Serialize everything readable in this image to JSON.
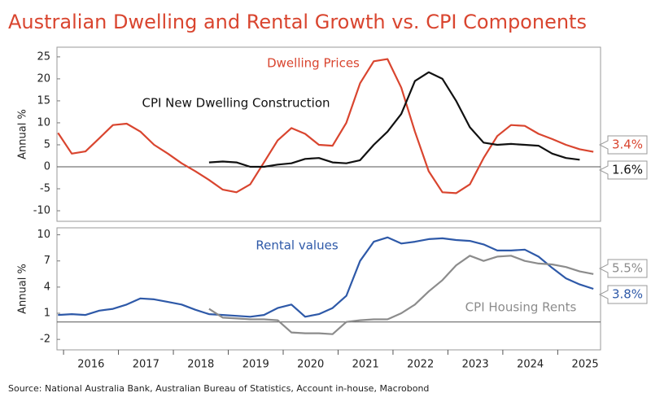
{
  "title": "Australian Dwelling and Rental Growth vs. CPI Components",
  "source": "Source: National Australia Bank, Australian Bureau of Statistics, Account in-house, Macrobond",
  "chart_data": [
    {
      "type": "line",
      "y_label": "Annual %",
      "x": [
        2015.9,
        2016.15,
        2016.4,
        2016.65,
        2016.9,
        2017.15,
        2017.4,
        2017.65,
        2017.9,
        2018.15,
        2018.4,
        2018.65,
        2018.9,
        2019.15,
        2019.4,
        2019.65,
        2019.9,
        2020.15,
        2020.4,
        2020.65,
        2020.9,
        2021.15,
        2021.4,
        2021.65,
        2021.9,
        2022.15,
        2022.4,
        2022.65,
        2022.9,
        2023.15,
        2023.4,
        2023.65,
        2023.9,
        2024.15,
        2024.4,
        2024.65,
        2024.9,
        2025.15,
        2025.4,
        2025.65
      ],
      "xlim": [
        2015.88,
        2025.78
      ],
      "ylim": [
        -12.4,
        27.2
      ],
      "yticks": [
        -10,
        -5,
        0,
        5,
        10,
        15,
        20,
        25
      ],
      "series": [
        {
          "name": "Dwelling Prices",
          "color": "#d9452f",
          "end_label": "3.4%",
          "values": [
            7.7,
            3.0,
            3.5,
            6.5,
            9.5,
            9.8,
            8,
            5,
            3,
            0.8,
            -1,
            -3,
            -5.2,
            -5.8,
            -4,
            1,
            6,
            8.8,
            7.5,
            5,
            4.8,
            10,
            19,
            24,
            24.5,
            18,
            8,
            -1,
            -5.8,
            -6,
            -4,
            2,
            7,
            9.5,
            9.3,
            7.5,
            6.3,
            5,
            4,
            3.4
          ]
        },
        {
          "name": "CPI New Dwelling Construction",
          "color": "#111111",
          "end_label": "1.6%",
          "values": [
            null,
            null,
            null,
            null,
            null,
            null,
            null,
            null,
            null,
            null,
            null,
            1.0,
            1.2,
            1.0,
            0,
            0,
            0.5,
            0.8,
            1.8,
            2,
            1,
            0.8,
            1.5,
            5,
            8,
            12,
            19.5,
            21.5,
            20,
            15,
            9,
            5.5,
            5,
            5.2,
            5,
            4.8,
            3,
            2,
            1.6,
            null
          ]
        }
      ]
    },
    {
      "type": "line",
      "y_label": "Annual %",
      "x": [
        2015.9,
        2016.15,
        2016.4,
        2016.65,
        2016.9,
        2017.15,
        2017.4,
        2017.65,
        2017.9,
        2018.15,
        2018.4,
        2018.65,
        2018.9,
        2019.15,
        2019.4,
        2019.65,
        2019.9,
        2020.15,
        2020.4,
        2020.65,
        2020.9,
        2021.15,
        2021.4,
        2021.65,
        2021.9,
        2022.15,
        2022.4,
        2022.65,
        2022.9,
        2023.15,
        2023.4,
        2023.65,
        2023.9,
        2024.15,
        2024.4,
        2024.65,
        2024.9,
        2025.15,
        2025.4,
        2025.65
      ],
      "xlim": [
        2015.88,
        2025.78
      ],
      "ylim": [
        -3.2,
        10.8
      ],
      "yticks": [
        -2,
        1,
        4,
        7,
        10
      ],
      "xticks": [
        2016,
        2017,
        2018,
        2019,
        2020,
        2021,
        2022,
        2023,
        2024,
        2025
      ],
      "series": [
        {
          "name": "Rental values",
          "color": "#2e59a8",
          "end_label": "3.8%",
          "values": [
            0.8,
            0.9,
            0.8,
            1.3,
            1.5,
            2.0,
            2.7,
            2.6,
            2.3,
            2.0,
            1.4,
            0.9,
            0.8,
            0.7,
            0.6,
            0.8,
            1.6,
            2.0,
            0.6,
            0.9,
            1.6,
            3.0,
            7.0,
            9.2,
            9.7,
            9.0,
            9.2,
            9.5,
            9.6,
            9.4,
            9.3,
            8.9,
            8.2,
            8.2,
            8.3,
            7.5,
            6.2,
            5.0,
            4.3,
            3.8
          ]
        },
        {
          "name": "CPI Housing Rents",
          "color": "#8c8c8c",
          "end_label": "5.5%",
          "values": [
            null,
            null,
            null,
            null,
            null,
            null,
            null,
            null,
            null,
            null,
            null,
            1.5,
            0.5,
            0.4,
            0.3,
            0.3,
            0.2,
            -1.2,
            -1.3,
            -1.3,
            -1.4,
            0,
            0.2,
            0.3,
            0.3,
            1,
            2,
            3.5,
            4.8,
            6.5,
            7.6,
            7.0,
            7.5,
            7.6,
            7.0,
            6.7,
            6.6,
            6.3,
            5.8,
            5.5
          ]
        }
      ]
    }
  ]
}
